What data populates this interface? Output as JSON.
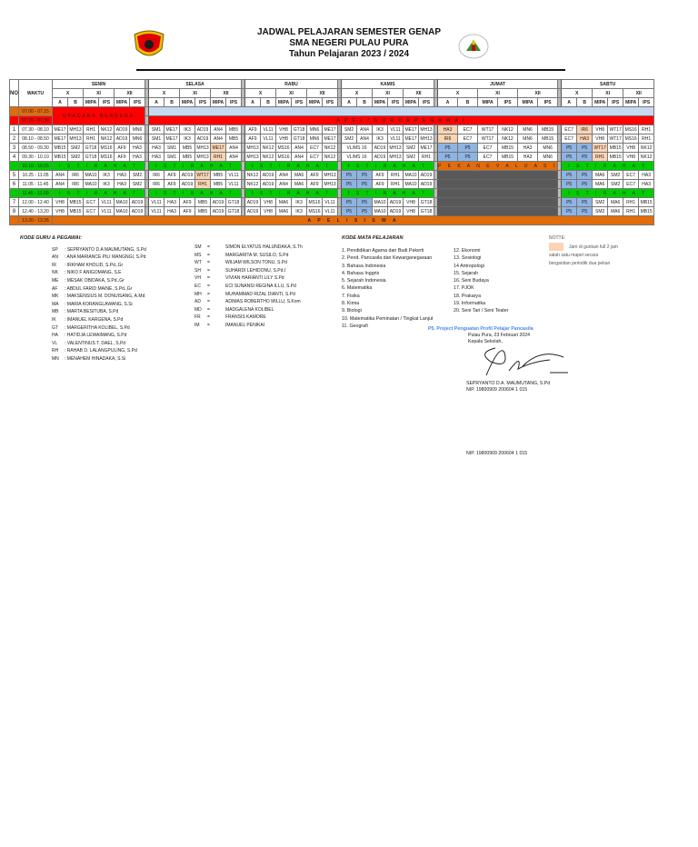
{
  "header": {
    "title": "JADWAL PELAJARAN SEMESTER GENAP",
    "school": "SMA NEGERI PULAU PURA",
    "year": "Tahun Pelajaran 2023 / 2024",
    "logo_left": "regency-crest-logo",
    "logo_right": "school-logo"
  },
  "table": {
    "col_no": "NO",
    "col_waktu": "WAKTU",
    "days": [
      "SENIN",
      "SELASA",
      "RABU",
      "KAMIS",
      "JUMAT",
      "SABTU"
    ],
    "grades": [
      "X",
      "XI",
      "XII"
    ],
    "classes": [
      "A",
      "B",
      "MIPA",
      "IPS",
      "MIPA",
      "IPS"
    ],
    "pre_rows": [
      {
        "time": "07.00 - 07.15"
      },
      {
        "time": "07.15 - 07.30"
      }
    ],
    "upacara": "UPACARA BENDERA",
    "apel_guru": "A P E L  /  G U R U  &  P E G A W A I",
    "istirahat": "I S T I R A H A T",
    "istirahat_rabu": "I S T I R   A H A T",
    "pekan_evaluasi": "P E K A N   E V A L U A S I",
    "apel_siswa": "A P E L  /  S I S W A",
    "rows": [
      {
        "no": "1",
        "time": "07.30 - 08.10",
        "senin": [
          "ME17",
          "MH13",
          "RH1",
          "NK12",
          "AD19",
          "MN6"
        ],
        "selasa": [
          "SM1",
          "ME17",
          "IK3",
          "AD19",
          "AN4",
          "MB5"
        ],
        "rabu": [
          "AF9",
          "VL11",
          "VH8",
          "GT18",
          "MN6",
          "ME17"
        ],
        "kamis": [
          "SM2",
          "AN4",
          "IK3",
          "VL11",
          "ME17",
          "MH13"
        ],
        "jumat": [
          "HA3",
          "EC7",
          "WT17",
          "NK12",
          "MN6",
          "MB15"
        ],
        "sabtu": [
          "EC7",
          "IR6",
          "VH8",
          "WT17",
          "MS16",
          "RH1"
        ]
      },
      {
        "no": "2",
        "time": "08.10 - 08.50",
        "senin": [
          "ME17",
          "MH13",
          "RH1",
          "NK12",
          "AD19",
          "MN6"
        ],
        "selasa": [
          "SM1",
          "ME17",
          "IK3",
          "AD19",
          "AN4",
          "MB5"
        ],
        "rabu": [
          "AF9",
          "VL11",
          "VH8",
          "GT18",
          "MN6",
          "ME17"
        ],
        "kamis": [
          "SM2",
          "AN4",
          "IK3",
          "VL11",
          "ME17",
          "MH13"
        ],
        "jumat": [
          "IR6",
          "EC7",
          "WT17",
          "NK12",
          "MN6",
          "MB15"
        ],
        "sabtu": [
          "EC7",
          "HA3",
          "VH8",
          "WT17",
          "MS16",
          "RH1"
        ]
      },
      {
        "no": "3",
        "time": "08.50 - 09.30",
        "senin": [
          "MB15",
          "SM2",
          "GT18",
          "MS16",
          "AF9",
          "HA3"
        ],
        "selasa": [
          "HA3",
          "SM1",
          "MB5",
          "MH13",
          "ME17",
          "AN4"
        ],
        "rabu": [
          "MH13",
          "NK12",
          "MS16",
          "AN4",
          "EC7",
          "NK12"
        ],
        "kamis": [
          "VL/MS 16",
          "AD19",
          "MH13",
          "SM2",
          "ME17"
        ],
        "jumat": [
          "P5",
          "P5",
          "EC7",
          "MB15",
          "HA3",
          "MN6"
        ],
        "sabtu": [
          "P5",
          "P5",
          "WT17",
          "MB15",
          "VH8",
          "NK12"
        ]
      },
      {
        "no": "4",
        "time": "09.30 - 10.10",
        "senin": [
          "MB15",
          "SM2",
          "GT18",
          "MS16",
          "AF9",
          "HA3"
        ],
        "selasa": [
          "HA3",
          "SM1",
          "MB5",
          "MH13",
          "RH1",
          "AN4"
        ],
        "rabu": [
          "MH13",
          "NK12",
          "MS16",
          "AN4",
          "EC7",
          "NK12"
        ],
        "kamis": [
          "VL/MS 16",
          "AD19",
          "MH13",
          "SM2",
          "RH1"
        ],
        "jumat": [
          "P5",
          "P5",
          "EC7",
          "MB15",
          "HA3",
          "MN6"
        ],
        "sabtu": [
          "P5",
          "P5",
          "RH1",
          "MB15",
          "VH8",
          "NK12"
        ]
      },
      {
        "break": true,
        "time": "10.10 - 10.25"
      },
      {
        "no": "5",
        "time": "10.25 - 11.05",
        "senin": [
          "AN4",
          "IR6",
          "MA10",
          "IK3",
          "HA3",
          "SM2"
        ],
        "selasa": [
          "IR6",
          "AF9",
          "AD19",
          "WT17",
          "MB5",
          "VL11"
        ],
        "rabu": [
          "NK12",
          "AD19",
          "AN4",
          "MA6",
          "AF9",
          "MH13"
        ],
        "kamis": [
          "P5",
          "P5",
          "AF9",
          "RH1",
          "MA10",
          "AD19"
        ],
        "sabtu": [
          "P5",
          "P5",
          "MA6",
          "SM2",
          "EC7",
          "HA3"
        ]
      },
      {
        "no": "6",
        "time": "11.05 - 11.45",
        "senin": [
          "AN4",
          "IR6",
          "MA10",
          "IK3",
          "HA3",
          "SM2"
        ],
        "selasa": [
          "IR6",
          "AF9",
          "AD19",
          "RH1",
          "MB5",
          "VL11"
        ],
        "rabu": [
          "NK12",
          "AD19",
          "AN4",
          "MA6",
          "AF9",
          "MH13"
        ],
        "kamis": [
          "P5",
          "P5",
          "AF9",
          "RH1",
          "MA10",
          "AD19"
        ],
        "sabtu": [
          "P5",
          "P5",
          "MA6",
          "SM2",
          "EC7",
          "HA3"
        ]
      },
      {
        "break": true,
        "time": "11.45 - 12.00"
      },
      {
        "no": "7",
        "time": "12.00 - 12.40",
        "senin": [
          "VH8",
          "MB15",
          "EC7",
          "VL11",
          "MA10",
          "AD19"
        ],
        "selasa": [
          "VL11",
          "HA3",
          "AF9",
          "MB5",
          "AD19",
          "GT18"
        ],
        "rabu": [
          "AD19",
          "VH8",
          "MA6",
          "IK3",
          "MS16",
          "VL11"
        ],
        "kamis": [
          "P5",
          "P5",
          "MA10",
          "AD19",
          "VH8",
          "GT18"
        ],
        "sabtu": [
          "P5",
          "P5",
          "SM2",
          "MA6",
          "RH1",
          "MB15"
        ]
      },
      {
        "no": "8",
        "time": "12.40 - 13.20",
        "senin": [
          "VH8",
          "MB15",
          "EC7",
          "VL11",
          "MA10",
          "AD19"
        ],
        "selasa": [
          "VL11",
          "HA3",
          "AF9",
          "MB5",
          "AD19",
          "GT18"
        ],
        "rabu": [
          "AD19",
          "VH8",
          "MA6",
          "IK3",
          "MS16",
          "VL11"
        ],
        "kamis": [
          "P5",
          "P5",
          "MA10",
          "AD19",
          "VH8",
          "GT18"
        ],
        "sabtu": [
          "P5",
          "P5",
          "SM2",
          "MA6",
          "RH1",
          "MB15"
        ]
      },
      {
        "end": true,
        "time": "13.20 - 13.35"
      }
    ]
  },
  "teachers": {
    "heading": "KODE GURU & PEGAWAI:",
    "col1": [
      {
        "code": "SP",
        "name": ": SEPRYANTO D.A MAUMUTANG, S.Pd"
      },
      {
        "code": "AN",
        "name": ": ANA MARIANCE PILI MANGNGI, S.Pd"
      },
      {
        "code": "IR",
        "name": ": IRKHAM KHOLID, S.Pd.,Gr"
      },
      {
        "code": "NK",
        "name": ": NIKO F ANIGOMANG, S.E"
      },
      {
        "code": "ME",
        "name": ": MESAK OBIDAKA, S.Pd.,Gr"
      },
      {
        "code": "AF",
        "name": ": ABDUL FARID MAINE, S.Pd.,Gr"
      },
      {
        "code": "MK",
        "name": ": MAKSENSIUS M. DONUISANG, A.Md"
      },
      {
        "code": "MA",
        "name": ": MARIA KORANGLAWANG, S.Si"
      },
      {
        "code": "MB",
        "name": ": MARTA BESITUBA, S.Pd"
      },
      {
        "code": "IK",
        "name": ": IMANUEL KARGENA, S.Pd"
      },
      {
        "code": "GT",
        "name": ": MARGERITHA KOLIBEL, S.Pd"
      },
      {
        "code": "HA",
        "name": ": HATIDJA LEWAIMANG, S.Pd"
      },
      {
        "code": "VL",
        "name": ": VALENTINUS T. DAEL, S.Pd"
      },
      {
        "code": "RH",
        "name": ": RAHAB D. LALANGPULING, S.Pd"
      },
      {
        "code": "MN",
        "name": ": MENAHEM HINADAKA, S.Si"
      }
    ],
    "col2": [
      {
        "code": "SM",
        "name": "SIMON ELYATUS HALUNDAKA, S.Th"
      },
      {
        "code": "MS",
        "name": "MARGARITA M. SUSILO, S.Pd"
      },
      {
        "code": "WT",
        "name": "WILIAM WILSON TONU, S.Pd"
      },
      {
        "code": "SH",
        "name": "SUHARDI LEHIDONU, S.Pd.I"
      },
      {
        "code": "VH",
        "name": "VIVIAN HARIANTI LILY S.Pd"
      },
      {
        "code": "EC",
        "name": "ECI SUNANSI REGINA ILLU, S.Pd"
      },
      {
        "code": "MH",
        "name": "MUHAMMAD RIZAL DIANTI, S.Pd"
      },
      {
        "code": "AD",
        "name": "ADIMAS ROBERTHO MILLU, S.Kom"
      },
      {
        "code": "MD",
        "name": "MADGALENA KOLIBEL"
      },
      {
        "code": "FR",
        "name": "FRANSIS KAMORE"
      },
      {
        "code": "IM",
        "name": "IMANUEL PENIKAI"
      }
    ],
    "eq": "="
  },
  "subjects": {
    "heading": "KODE MATA PELAJARAN",
    "col1": [
      "1. Pendidikan Agama dan Budi Pekerti",
      "2. Pend. Pancasila dan Kewarganegaraan",
      "3. Bahasa Indonesia",
      "4. Bahasa Inggris",
      "5. Sejarah Indonesia",
      "6. Matematika",
      "7. Fisika",
      "8. Kimia",
      "9. Biologi",
      "10. Matematika Peminatan / Tingkat Lanjut",
      "11. Geografi"
    ],
    "col2": [
      "12. Ekonomi",
      "13. Sosiologi",
      "14  Antropologi",
      "15. Sejarah",
      "16. Seni Budaya",
      "17. PJOK",
      "18. Prakarya",
      "19. Informatika",
      "20. Seni Tari / Seni Teater"
    ],
    "p5_note": "P5. Project Penguatan Profil Pelajar Pancasila"
  },
  "signature": {
    "place_date": "Pulau Pura, 23 Februari 2024",
    "role": "Kepala Sekolah,",
    "name": "SEPRYANTO D.A. MAUMUTANG, S.Pd",
    "nip_cut": "NIP. 19800909 200604 1 015",
    "nip": "NIP. 19800909 200604 1 015"
  },
  "note": {
    "title": "NOTTE:",
    "line1": "Jam di gunkan full 2 jam",
    "line2": "salah satu mapel secara",
    "line3": "bergantian periodik dua pekan"
  },
  "colors": {
    "orange": "#e26b0a",
    "red": "#ff0000",
    "green": "#00cc00",
    "light_blue": "#c6d9f0",
    "peach": "#fbd4b4",
    "p5_blue": "#8eb4e3"
  }
}
